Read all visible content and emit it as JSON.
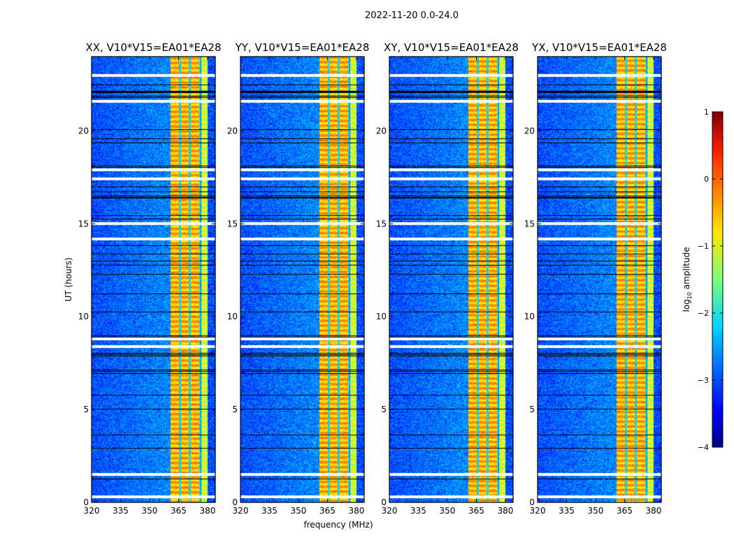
{
  "figure_title": "2022-11-20 0.0-24.0",
  "chart_data": {
    "type": "heatmap",
    "title": "2022-11-20 0.0-24.0",
    "xlabel": "frequency (MHz)",
    "ylabel": "UT (hours)",
    "xlim": [
      320,
      384
    ],
    "ylim": [
      0,
      24
    ],
    "xticks": [
      "320",
      "335",
      "350",
      "365",
      "380"
    ],
    "yticks": [
      "0",
      "5",
      "10",
      "15",
      "20"
    ],
    "panels": [
      {
        "title": "XX, V10*V15=EA01*EA28"
      },
      {
        "title": "YY, V10*V15=EA01*EA28"
      },
      {
        "title": "XY, V10*V15=EA01*EA28"
      },
      {
        "title": "YX, V10*V15=EA01*EA28"
      }
    ],
    "background_log_amplitude": -3,
    "signal_band_mhz": [
      360.5,
      380
    ],
    "signal_log_amplitude": -0.5,
    "band_gaps_mhz": [
      365.5,
      370.5,
      376
    ],
    "flagged_hours": [
      0.3,
      1.5,
      8.4,
      8.8,
      14.2,
      15.0,
      17.4,
      17.9,
      21.6,
      23.0
    ],
    "colorbar": {
      "label": "log10 amplitude",
      "label_main": "log",
      "label_sub": "10",
      "label_rest": " amplitude",
      "range": [
        -4,
        1
      ],
      "ticks": [
        "1",
        "0",
        "−1",
        "−2",
        "−3",
        "−4"
      ],
      "colormap": "jet"
    }
  }
}
